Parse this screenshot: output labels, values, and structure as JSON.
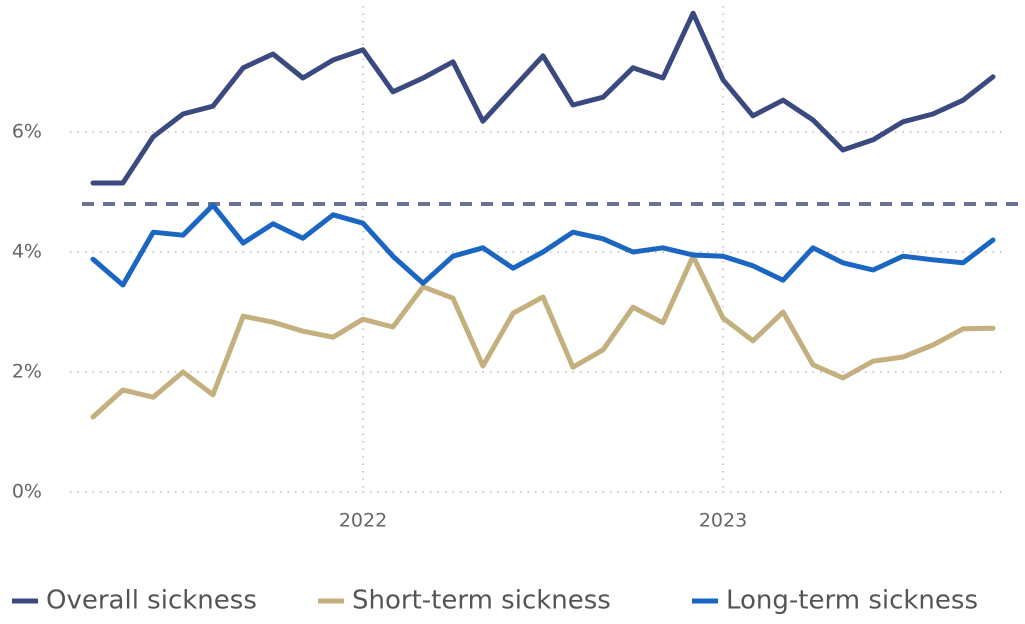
{
  "chart_data": {
    "type": "line",
    "x": [
      2021.25,
      2021.333,
      2021.417,
      2021.5,
      2021.583,
      2021.667,
      2021.75,
      2021.833,
      2021.917,
      2022,
      2022.083,
      2022.167,
      2022.25,
      2022.333,
      2022.417,
      2022.5,
      2022.583,
      2022.667,
      2022.75,
      2022.833,
      2022.917,
      2023,
      2023.083,
      2023.167,
      2023.25,
      2023.333,
      2023.417,
      2023.5,
      2023.583,
      2023.667,
      2023.75
    ],
    "series": [
      {
        "name": "Overall sickness",
        "color": "#3b4a7e",
        "values": [
          5.15,
          5.15,
          5.92,
          6.3,
          6.43,
          7.07,
          7.3,
          6.9,
          7.2,
          7.37,
          6.67,
          6.9,
          7.17,
          6.18,
          6.73,
          7.27,
          6.45,
          6.58,
          7.07,
          6.9,
          7.98,
          6.87,
          6.27,
          6.53,
          6.2,
          5.7,
          5.87,
          6.17,
          6.3,
          6.53,
          6.92
        ]
      },
      {
        "name": "Short-term sickness",
        "color": "#c4b07e",
        "values": [
          1.25,
          1.7,
          1.58,
          2.0,
          1.62,
          2.93,
          2.83,
          2.68,
          2.58,
          2.88,
          2.75,
          3.42,
          3.23,
          2.1,
          2.98,
          3.25,
          2.08,
          2.37,
          3.08,
          2.82,
          3.93,
          2.9,
          2.52,
          3.0,
          2.12,
          1.9,
          2.18,
          2.25,
          2.45,
          2.72,
          2.73
        ]
      },
      {
        "name": "Long-term sickness",
        "color": "#1a66c2",
        "values": [
          3.88,
          3.45,
          4.33,
          4.28,
          4.78,
          4.15,
          4.47,
          4.23,
          4.62,
          4.48,
          3.93,
          3.48,
          3.93,
          4.07,
          3.73,
          4.0,
          4.33,
          4.22,
          4.0,
          4.07,
          3.95,
          3.93,
          3.77,
          3.53,
          4.07,
          3.82,
          3.7,
          3.93,
          3.87,
          3.82,
          4.2
        ]
      }
    ],
    "reference_line": {
      "value": 4.8,
      "color": "#6a7394"
    },
    "xlim": [
      2021.186,
      2023.825
    ],
    "xticks": [
      2022,
      2023
    ],
    "ylim": [
      0,
      8.1
    ],
    "yticks": [
      {
        "value": 0,
        "label": "0%"
      },
      {
        "value": 2,
        "label": "2%"
      },
      {
        "value": 4,
        "label": "4%"
      },
      {
        "value": 6,
        "label": "6%"
      }
    ],
    "grid": true,
    "legend": "bottom"
  }
}
